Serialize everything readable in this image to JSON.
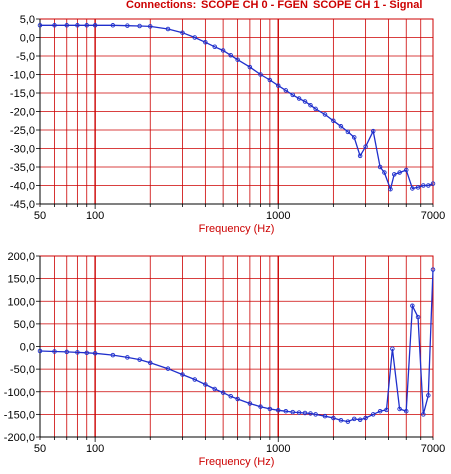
{
  "header": {
    "prefix": "Connections:",
    "ch0": "SCOPE CH 0 - FGEN",
    "ch1": "SCOPE CH 1 - Signal"
  },
  "colors": {
    "grid": "#cc0000",
    "trace": "#1f2fcc",
    "marker": "#1f2fcc",
    "axis_text": "#000000",
    "header_text": "#cc0000",
    "xlabel_text": "#cc0000"
  },
  "chart_data": [
    {
      "type": "line",
      "name": "magnitude",
      "xlabel": "Frequency (Hz)",
      "ylabel": "",
      "xscale": "log",
      "xlim": [
        50,
        7000
      ],
      "ylim": [
        -45,
        5
      ],
      "grid": true,
      "x_ticks": [
        50,
        60,
        70,
        80,
        90,
        100,
        200,
        300,
        400,
        500,
        600,
        700,
        800,
        900,
        1000,
        2000,
        3000,
        4000,
        5000,
        6000,
        7000
      ],
      "x_tick_labels": [
        {
          "value": 50,
          "label": "50"
        },
        {
          "value": 100,
          "label": "100"
        },
        {
          "value": 1000,
          "label": "1000"
        },
        {
          "value": 7000,
          "label": "7000"
        }
      ],
      "y_ticks": [
        5,
        0,
        -5,
        -10,
        -15,
        -20,
        -25,
        -30,
        -35,
        -40,
        -45
      ],
      "y_tick_labels": [
        "5,0",
        "0,0",
        "-5,0",
        "-10,0",
        "-15,0",
        "-20,0",
        "-25,0",
        "-30,0",
        "-35,0",
        "-40,0",
        "-45,0"
      ],
      "x": [
        50,
        60,
        70,
        80,
        90,
        100,
        125,
        150,
        175,
        200,
        250,
        300,
        350,
        400,
        450,
        500,
        550,
        600,
        700,
        800,
        900,
        1000,
        1100,
        1200,
        1300,
        1400,
        1500,
        1600,
        1800,
        2000,
        2200,
        2400,
        2600,
        2800,
        3000,
        3300,
        3600,
        3800,
        4100,
        4300,
        4600,
        5000,
        5400,
        5800,
        6200,
        6600,
        7000
      ],
      "y": [
        3.3,
        3.3,
        3.3,
        3.3,
        3.3,
        3.3,
        3.3,
        3.2,
        3.1,
        3.0,
        2.3,
        1.3,
        0.0,
        -1.3,
        -2.5,
        -3.5,
        -4.8,
        -6.0,
        -8.0,
        -10.0,
        -11.5,
        -13.0,
        -14.3,
        -15.5,
        -16.5,
        -17.3,
        -18.3,
        -19.3,
        -20.8,
        -22.5,
        -24.0,
        -25.5,
        -27.0,
        -32.0,
        -29.5,
        -25.3,
        -35.0,
        -36.5,
        -41.0,
        -37.0,
        -36.5,
        -35.8,
        -40.8,
        -40.5,
        -40.0,
        -40.0,
        -39.5
      ]
    },
    {
      "type": "line",
      "name": "phase",
      "xlabel": "Frequency (Hz)",
      "ylabel": "",
      "xscale": "log",
      "xlim": [
        50,
        7000
      ],
      "ylim": [
        -200,
        200
      ],
      "grid": true,
      "x_ticks": [
        50,
        60,
        70,
        80,
        90,
        100,
        200,
        300,
        400,
        500,
        600,
        700,
        800,
        900,
        1000,
        2000,
        3000,
        4000,
        5000,
        6000,
        7000
      ],
      "x_tick_labels": [
        {
          "value": 50,
          "label": "50"
        },
        {
          "value": 100,
          "label": "100"
        },
        {
          "value": 1000,
          "label": "1000"
        },
        {
          "value": 7000,
          "label": "7000"
        }
      ],
      "y_ticks": [
        200,
        150,
        100,
        50,
        0,
        -50,
        -100,
        -150,
        -200
      ],
      "y_tick_labels": [
        "200,0",
        "150,0",
        "100,0",
        "50,0",
        "0,0",
        "-50,0",
        "-100,0",
        "-150,0",
        "-200,0"
      ],
      "x": [
        50,
        60,
        70,
        80,
        90,
        100,
        125,
        150,
        175,
        200,
        250,
        300,
        350,
        400,
        450,
        500,
        550,
        600,
        700,
        800,
        900,
        1000,
        1100,
        1200,
        1300,
        1400,
        1500,
        1600,
        1800,
        2000,
        2200,
        2400,
        2600,
        2800,
        3000,
        3300,
        3600,
        3900,
        4200,
        4600,
        5000,
        5400,
        5800,
        6200,
        6600,
        7000
      ],
      "y": [
        -10,
        -11,
        -12,
        -13,
        -14,
        -15,
        -19,
        -24,
        -29,
        -36,
        -49,
        -62,
        -73,
        -84,
        -94,
        -102,
        -110,
        -116,
        -126,
        -133,
        -138,
        -141,
        -143,
        -145,
        -146,
        -147,
        -148,
        -150,
        -154,
        -158,
        -163,
        -166,
        -160,
        -162,
        -158,
        -150,
        -143,
        -140,
        -5,
        -138,
        -143,
        90,
        65,
        -150,
        -108,
        170
      ]
    }
  ]
}
